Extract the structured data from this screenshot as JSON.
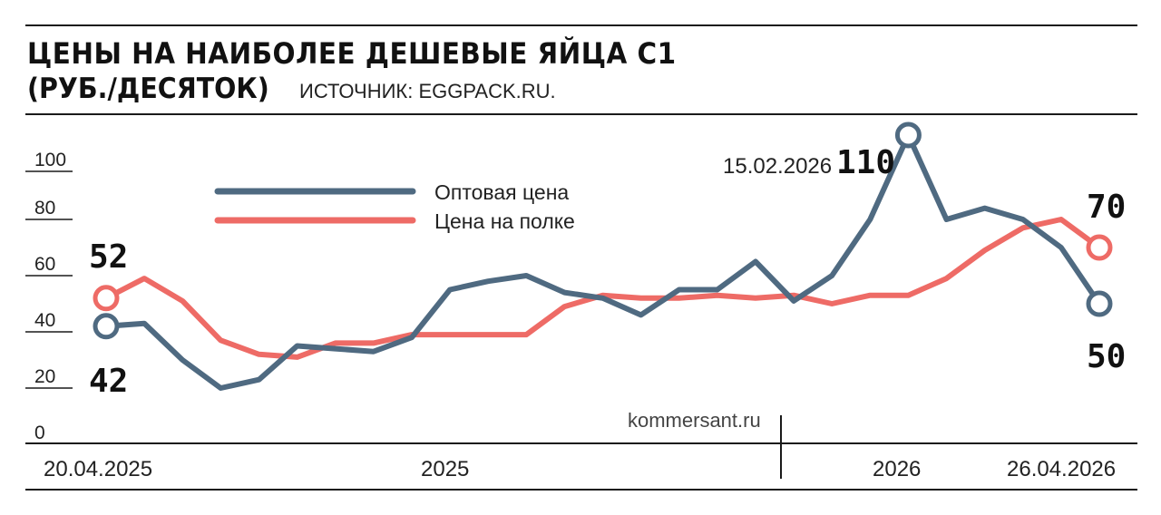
{
  "header": {
    "title": "ЦЕНЫ НА НАИБОЛЕЕ ДЕШЕВЫЕ ЯЙЦА С1",
    "subtitle": "(РУБ./ДЕСЯТОК)",
    "source": "ИСТОЧНИК: EGGPACK.RU."
  },
  "credit": "kommersant.ru",
  "colors": {
    "wholesale": "#4f6a81",
    "shelf": "#ee6b66",
    "text": "#1a1a1a"
  },
  "chart_data": {
    "type": "line",
    "title": "ЦЕНЫ НА НАИБОЛЕЕ ДЕШЕВЫЕ ЯЙЦА С1",
    "ylim": [
      0,
      100
    ],
    "yticks": [
      "100",
      "80",
      "60",
      "40",
      "20",
      "0"
    ],
    "yticks_values": [
      100,
      80,
      60,
      40,
      20,
      0
    ],
    "x_labels": [
      "20.04.2025",
      "2025",
      "2026",
      "26.04.2026"
    ],
    "legend": [
      "Оптовая цена",
      "Цена на полке"
    ],
    "series": [
      {
        "name": "Оптовая цена",
        "color": "#4f6a81",
        "values": [
          42,
          43,
          30,
          20,
          23,
          35,
          34,
          33,
          38,
          55,
          58,
          60,
          54,
          52,
          46,
          55,
          55,
          65,
          51,
          60,
          80,
          110,
          80,
          84,
          80,
          70,
          50
        ]
      },
      {
        "name": "Цена на полке",
        "color": "#ee6b66",
        "values": [
          52,
          59,
          51,
          37,
          32,
          31,
          36,
          36,
          39,
          39,
          39,
          39,
          49,
          53,
          52,
          52,
          53,
          52,
          53,
          50,
          53,
          53,
          59,
          69,
          77,
          80,
          70
        ]
      }
    ],
    "annotations": [
      {
        "label": "52",
        "series": "Цена на полке",
        "index": 0,
        "value": 52
      },
      {
        "label": "42",
        "series": "Оптовая цена",
        "index": 0,
        "value": 42
      },
      {
        "label": "110",
        "date": "15.02.2026",
        "series": "Оптовая цена",
        "index": 21,
        "value": 110
      },
      {
        "label": "70",
        "series": "Цена на полке",
        "index": 26,
        "value": 70
      },
      {
        "label": "50",
        "series": "Оптовая цена",
        "index": 26,
        "value": 50
      }
    ]
  }
}
